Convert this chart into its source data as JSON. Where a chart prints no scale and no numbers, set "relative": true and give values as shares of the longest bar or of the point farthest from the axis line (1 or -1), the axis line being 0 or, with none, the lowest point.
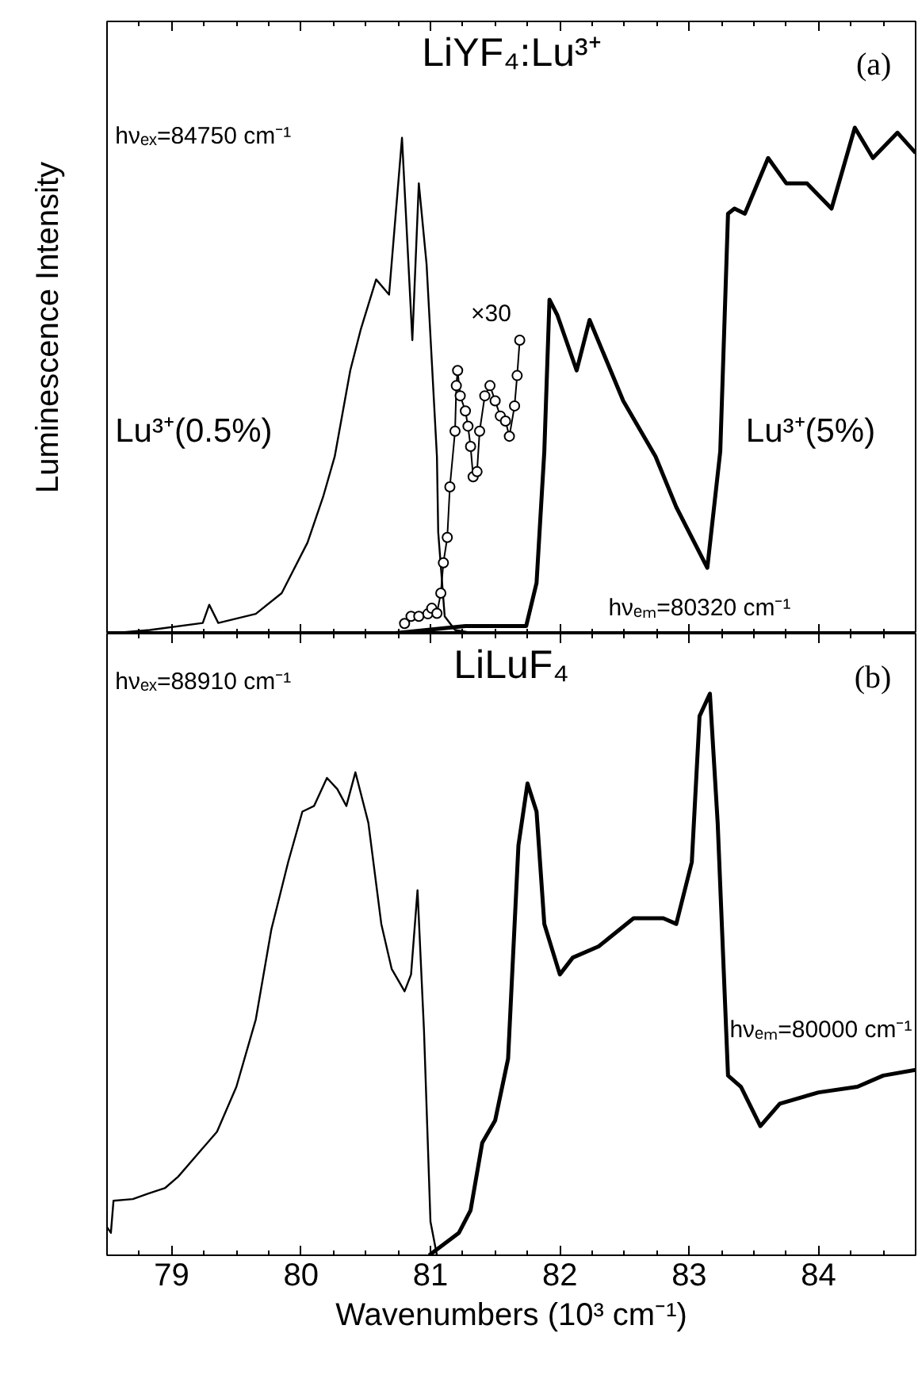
{
  "chart_data": [
    {
      "type": "line",
      "relative": true,
      "title": "LiYF₄:Lu³⁺",
      "ylabel": "Luminescence Intensity",
      "xlim": [
        78.5,
        84.75
      ],
      "xticks": [
        {
          "value": 78.75,
          "label": null
        },
        79,
        {
          "value": 79.25,
          "label": null
        },
        {
          "value": 79.5,
          "label": null
        },
        {
          "value": 79.75,
          "label": null
        },
        80,
        {
          "value": 80.25,
          "label": null
        },
        {
          "value": 80.5,
          "label": null
        },
        {
          "value": 80.75,
          "label": null
        },
        81,
        {
          "value": 81.25,
          "label": null
        },
        {
          "value": 81.5,
          "label": null
        },
        {
          "value": 81.75,
          "label": null
        },
        82,
        {
          "value": 82.25,
          "label": null
        },
        {
          "value": 82.5,
          "label": null
        },
        {
          "value": 82.75,
          "label": null
        },
        83,
        {
          "value": 83.25,
          "label": null
        },
        {
          "value": 83.5,
          "label": null
        },
        {
          "value": 83.75,
          "label": null
        },
        84,
        {
          "value": 84.25,
          "label": null
        },
        {
          "value": 84.5,
          "label": null
        }
      ],
      "tick_labels": false,
      "grid": false,
      "marker": "none",
      "line_style": "solid",
      "annotations": [
        "(a)",
        "hνₑₓ=84750 cm⁻¹",
        "hνₑₘ=80320 cm⁻¹"
      ],
      "series": [
        {
          "name": "Lu³⁺(0.5%)",
          "color": "#000000",
          "x": [
            78.51,
            78.83,
            79.24,
            79.29,
            79.36,
            79.65,
            79.85,
            80.05,
            80.17,
            80.26,
            80.38,
            80.46,
            80.58,
            80.68,
            80.78,
            80.86,
            80.91,
            80.97,
            81.05,
            81.06,
            81.11,
            81.19,
            81.35
          ],
          "values": [
            0,
            0.007,
            0.021,
            0.057,
            0.021,
            0.039,
            0.08,
            0.18,
            0.27,
            0.35,
            0.52,
            0.6,
            0.7,
            0.67,
            0.98,
            0.58,
            0.89,
            0.73,
            0.35,
            0.2,
            0.034,
            0.007,
            0
          ]
        },
        {
          "name": "Lu³⁺(5%)",
          "color": "#000000",
          "x": [
            80.7,
            81.27,
            81.74,
            81.82,
            81.88,
            81.92,
            81.98,
            82.13,
            82.23,
            82.49,
            82.74,
            82.9,
            83.14,
            83.24,
            83.3,
            83.35,
            83.43,
            83.61,
            83.75,
            83.91,
            84.1,
            84.28,
            84.42,
            84.61,
            84.75
          ],
          "values": [
            0,
            0.015,
            0.015,
            0.1,
            0.36,
            0.66,
            0.63,
            0.52,
            0.62,
            0.46,
            0.35,
            0.25,
            0.13,
            0.36,
            0.83,
            0.84,
            0.83,
            0.94,
            0.89,
            0.89,
            0.84,
            1,
            0.94,
            0.99,
            0.95
          ]
        },
        {
          "name": "×30",
          "color": "#000000",
          "marker": "circle",
          "x": [
            80.8,
            80.85,
            80.91,
            80.98,
            81.01,
            81.05,
            81.08,
            81.1,
            81.13,
            81.15,
            81.19,
            81.2,
            81.21,
            81.23,
            81.27,
            81.29,
            81.31,
            81.33,
            81.36,
            81.38,
            81.42,
            81.46,
            81.5,
            81.54,
            81.58,
            81.61,
            81.65,
            81.67,
            81.69
          ],
          "values": [
            0.02,
            0.034,
            0.034,
            0.039,
            0.05,
            0.04,
            0.08,
            0.14,
            0.19,
            0.29,
            0.4,
            0.49,
            0.52,
            0.47,
            0.44,
            0.41,
            0.37,
            0.31,
            0.32,
            0.4,
            0.47,
            0.49,
            0.46,
            0.43,
            0.42,
            0.39,
            0.45,
            0.51,
            0.58
          ]
        }
      ]
    },
    {
      "type": "line",
      "relative": true,
      "title": "LiLuF₄",
      "xlabel": "Wavenumbers (10³ cm⁻¹)",
      "xlim": [
        78.5,
        84.75
      ],
      "xticks": [
        {
          "value": 78.75,
          "label": null
        },
        79,
        {
          "value": 79.25,
          "label": null
        },
        {
          "value": 79.5,
          "label": null
        },
        {
          "value": 79.75,
          "label": null
        },
        80,
        {
          "value": 80.25,
          "label": null
        },
        {
          "value": 80.5,
          "label": null
        },
        {
          "value": 80.75,
          "label": null
        },
        81,
        {
          "value": 81.25,
          "label": null
        },
        {
          "value": 81.5,
          "label": null
        },
        {
          "value": 81.75,
          "label": null
        },
        82,
        {
          "value": 82.25,
          "label": null
        },
        {
          "value": 82.5,
          "label": null
        },
        {
          "value": 82.75,
          "label": null
        },
        83,
        {
          "value": 83.25,
          "label": null
        },
        {
          "value": 83.5,
          "label": null
        },
        {
          "value": 83.75,
          "label": null
        },
        84,
        {
          "value": 84.25,
          "label": null
        },
        {
          "value": 84.5,
          "label": null
        }
      ],
      "tick_labels": "x",
      "grid": false,
      "marker": "none",
      "line_style": "solid",
      "annotations": [
        "(b)",
        "hνₑₓ=88910 cm⁻¹",
        "hνₑₘ=80000 cm⁻¹"
      ],
      "series": [
        {
          "color": "#000000",
          "x": [
            78.5,
            78.53,
            78.55,
            78.7,
            78.82,
            78.95,
            79.05,
            79.2,
            79.35,
            79.5,
            79.65,
            79.77,
            79.9,
            80.01,
            80.1,
            80.2,
            80.28,
            80.35,
            80.42,
            80.52,
            80.62,
            80.7,
            80.8,
            80.85,
            80.9,
            80.95,
            81.0,
            81.05
          ],
          "values": [
            0.05,
            0.04,
            0.097,
            0.1,
            0.11,
            0.12,
            0.14,
            0.18,
            0.22,
            0.3,
            0.42,
            0.58,
            0.7,
            0.79,
            0.8,
            0.85,
            0.83,
            0.8,
            0.86,
            0.77,
            0.59,
            0.51,
            0.47,
            0.5,
            0.65,
            0.4,
            0.06,
            0
          ]
        },
        {
          "color": "#000000",
          "x": [
            80.99,
            81.22,
            81.31,
            81.4,
            81.5,
            81.6,
            81.68,
            81.75,
            81.82,
            81.88,
            82.0,
            82.1,
            82.3,
            82.57,
            82.8,
            82.9,
            83.02,
            83.08,
            83.16,
            83.22,
            83.3,
            83.4,
            83.55,
            83.7,
            84.0,
            84.3,
            84.5,
            84.75
          ],
          "values": [
            0,
            0.04,
            0.08,
            0.2,
            0.24,
            0.35,
            0.73,
            0.84,
            0.79,
            0.59,
            0.5,
            0.53,
            0.55,
            0.6,
            0.6,
            0.59,
            0.7,
            0.96,
            1,
            0.77,
            0.32,
            0.3,
            0.23,
            0.27,
            0.29,
            0.3,
            0.32,
            0.33
          ]
        }
      ]
    }
  ]
}
